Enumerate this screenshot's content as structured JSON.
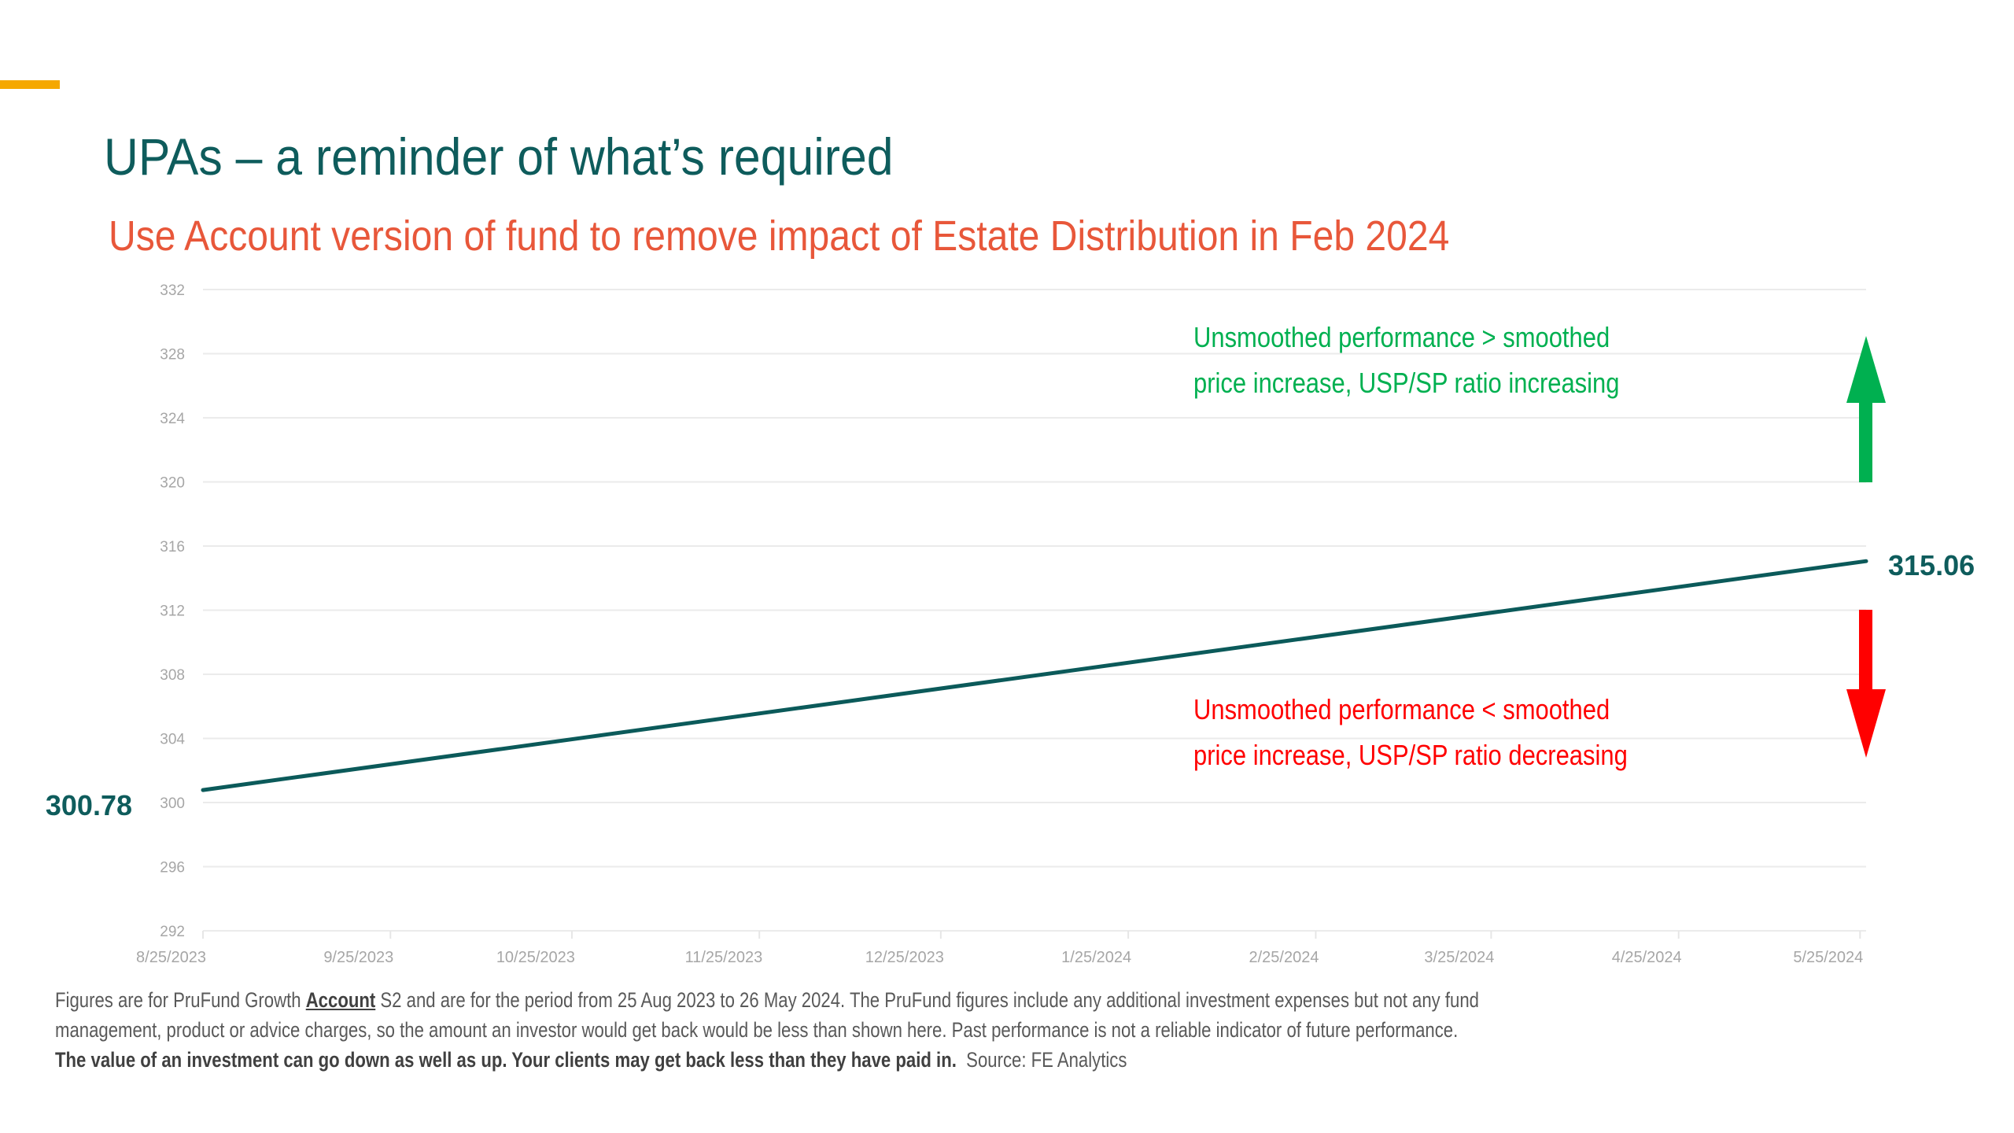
{
  "slide": {
    "title": "UPAs – a reminder of what’s required",
    "subtitle": "Use Account version of fund to remove impact of Estate Distribution in Feb 2024",
    "colors": {
      "accent_bar": "#F5A800",
      "title": "#0E5C5C",
      "subtitle": "#E8573A",
      "up": "#00B050",
      "down": "#FF0000",
      "line": "#0B5A5A"
    }
  },
  "annotations": {
    "up": {
      "line1": "Unsmoothed performance > smoothed",
      "line2": "price increase, USP/SP ratio increasing",
      "icon": "arrow-up-icon"
    },
    "down": {
      "line1": "Unsmoothed performance < smoothed",
      "line2": "price increase, USP/SP ratio decreasing",
      "icon": "arrow-down-icon"
    }
  },
  "footnote": {
    "line1_a": "Figures are for PruFund Growth ",
    "line1_u": "Account",
    "line1_b": " S2 and are for the period from 25 Aug 2023 to 26 May 2024. The PruFund figures include any additional investment expenses but not any fund",
    "line2": "management, product or advice charges, so the amount an investor would get back would be less than shown here.  Past performance is not a reliable indicator of future performance.",
    "line3_bold": "The value of an investment can go down as well as up. Your clients may get back less than they have paid in.",
    "line3_source": "  Source: FE Analytics"
  },
  "chart_data": {
    "type": "line",
    "title": "",
    "xlabel": "",
    "ylabel": "",
    "ylim": [
      292,
      332
    ],
    "yticks": [
      "292",
      "296",
      "300",
      "304",
      "308",
      "312",
      "316",
      "320",
      "324",
      "328",
      "332"
    ],
    "xlim": [
      "2023-08-25",
      "2024-05-26"
    ],
    "xtick_dates": [
      "2023-08-25",
      "2023-09-25",
      "2023-10-25",
      "2023-11-25",
      "2023-12-25",
      "2024-01-25",
      "2024-02-25",
      "2024-03-25",
      "2024-04-25",
      "2024-05-25"
    ],
    "xtick_labels": [
      "8/25/2023",
      "9/25/2023",
      "10/25/2023",
      "11/25/2023",
      "12/25/2023",
      "1/25/2024",
      "2/25/2024",
      "3/25/2024",
      "4/25/2024",
      "5/25/2024"
    ],
    "grid": true,
    "legend": "none",
    "series": [
      {
        "name": "PruFund Growth Account S2",
        "x": [
          "2023-08-25",
          "2024-05-26"
        ],
        "values": [
          300.78,
          315.06
        ]
      }
    ],
    "start_label": "300.78",
    "end_label": "315.06"
  }
}
